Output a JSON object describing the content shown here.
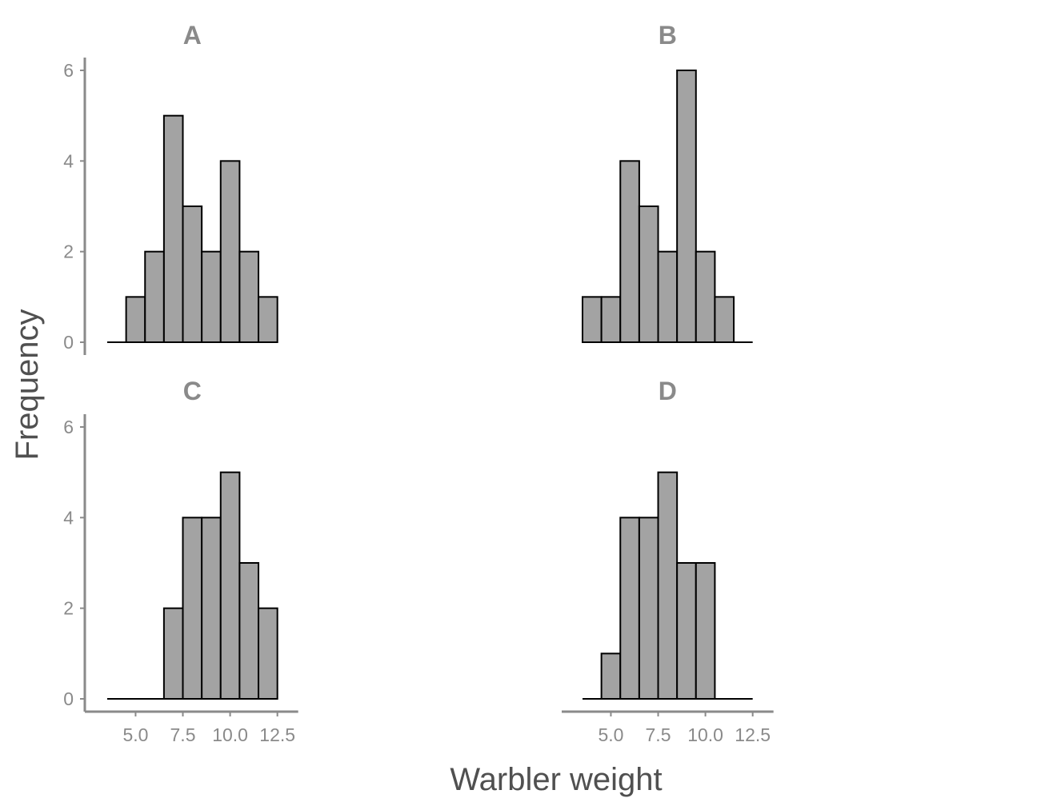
{
  "chart_data": {
    "type": "bar",
    "xlabel": "Warbler weight",
    "ylabel": "Frequency",
    "bin_width": 1,
    "bin_centers": [
      4,
      5,
      6,
      7,
      8,
      9,
      10,
      11,
      12
    ],
    "xlim": [
      3.5,
      12.5
    ],
    "ylim": [
      0,
      6
    ],
    "x_ticks": [
      "5.0",
      "7.5",
      "10.0",
      "12.5"
    ],
    "y_ticks": [
      "0",
      "2",
      "4",
      "6"
    ],
    "grid": false,
    "panels": [
      {
        "title": "A",
        "values": [
          0,
          1,
          2,
          5,
          3,
          2,
          4,
          2,
          1
        ]
      },
      {
        "title": "B",
        "values": [
          1,
          1,
          4,
          3,
          2,
          6,
          2,
          1,
          0
        ]
      },
      {
        "title": "C",
        "values": [
          0,
          0,
          0,
          2,
          4,
          4,
          5,
          3,
          2
        ]
      },
      {
        "title": "D",
        "values": [
          0,
          1,
          4,
          4,
          5,
          3,
          3,
          0,
          0
        ]
      }
    ]
  }
}
